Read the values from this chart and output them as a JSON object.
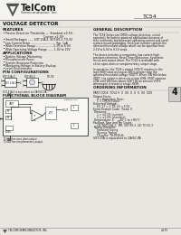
{
  "bg_color": "#e8e6e0",
  "text_color": "#1a1a1a",
  "gray": "#888888",
  "title_chip": "TC54",
  "company": "TelCom",
  "company_sub": "Semiconductor, Inc.",
  "section_title": "VOLTAGE DETECTOR",
  "features_title": "FEATURES",
  "applications_title": "APPLICATIONS",
  "pin_config_title": "PIN CONFIGURATIONS",
  "general_title": "GENERAL DESCRIPTION",
  "ordering_title": "ORDERING INFORMATION",
  "functional_title": "FUNCTIONAL BLOCK DIAGRAM",
  "tab_number": "4",
  "footer": "TELCOM SEMICONDUCTOR, INC.",
  "footer_right": "4-279"
}
